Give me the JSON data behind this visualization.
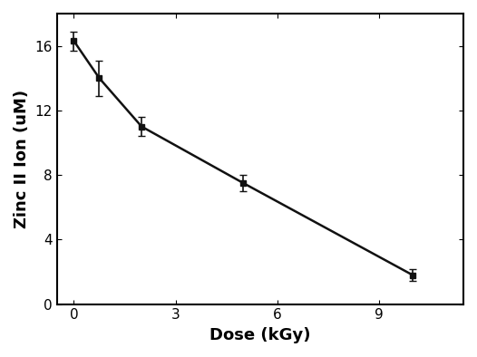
{
  "x": [
    0,
    0.75,
    2.0,
    5.0,
    10.0
  ],
  "y": [
    16.3,
    14.0,
    11.0,
    7.5,
    1.8
  ],
  "yerr": [
    0.6,
    1.1,
    0.6,
    0.5,
    0.35
  ],
  "xlabel": "Dose (kGy)",
  "ylabel": "Zinc II Ion (uM)",
  "xlim": [
    -0.5,
    11.5
  ],
  "ylim": [
    0,
    18
  ],
  "xticks": [
    0,
    3,
    6,
    9
  ],
  "yticks": [
    0,
    4,
    8,
    12,
    16
  ],
  "marker": "s",
  "markersize": 5,
  "linewidth": 1.8,
  "color": "#111111",
  "capsize": 3,
  "elinewidth": 1.2,
  "xlabel_fontsize": 13,
  "ylabel_fontsize": 13,
  "tick_fontsize": 11,
  "xlabel_fontweight": "bold",
  "ylabel_fontweight": "bold"
}
